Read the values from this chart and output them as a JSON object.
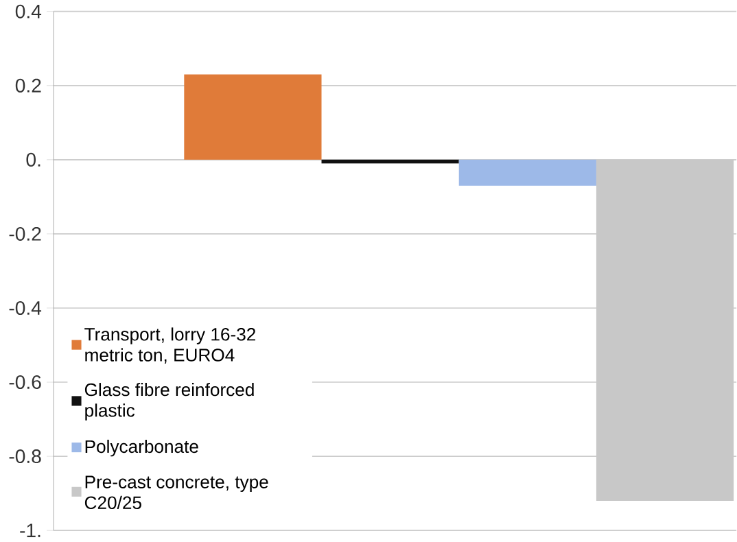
{
  "chart_data": {
    "type": "bar",
    "categories": [
      null
    ],
    "series": [
      {
        "name": "Transport, lorry 16-32 metric ton, EURO4",
        "color": "#e07b39",
        "values": [
          0.23
        ]
      },
      {
        "name": "Glass fibre reinforced plastic",
        "color": "#111111",
        "values": [
          -0.01
        ]
      },
      {
        "name": "Polycarbonate",
        "color": "#9db9e8",
        "values": [
          -0.07
        ]
      },
      {
        "name": "Pre-cast concrete, type C20/25",
        "color": "#c8c8c8",
        "values": [
          -0.92
        ]
      }
    ],
    "ylim": [
      -1,
      0.4
    ],
    "yticks": [
      0.4,
      0.2,
      {
        "value": 0,
        "label": "0."
      },
      -0.2,
      -0.4,
      -0.6,
      -0.8,
      {
        "value": -1,
        "label": "-1."
      }
    ],
    "legend": "bottom left",
    "grid": true
  }
}
